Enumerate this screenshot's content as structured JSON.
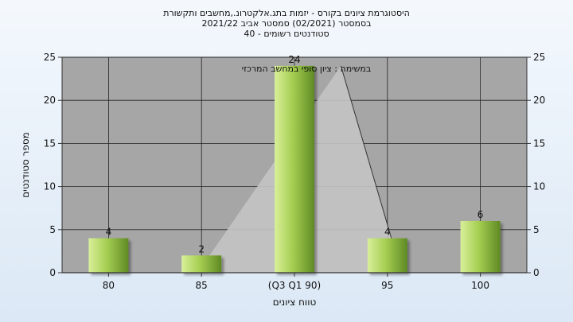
{
  "chart_data": {
    "type": "bar",
    "title_lines": [
      "היסטוגרמת ציונים בקורס - יזמות בתג.אלקטרונ.,מחשבים ותקשורת",
      "בסמסטר  (02/2021)  סמסטר אביב 2021/22",
      "סטודנטים רשומים - 40"
    ],
    "categories": [
      "80",
      "85",
      "(Q3 Q1 90)",
      "95",
      "100"
    ],
    "values": [
      4,
      2,
      24,
      4,
      6
    ],
    "data_labels": [
      "4",
      "2",
      "24",
      "4",
      "6"
    ],
    "xlabel": "טווח ציונים",
    "ylabel": "מספר סטודנטים",
    "ylim": [
      0,
      25
    ],
    "yticks": [
      0,
      5,
      10,
      15,
      20,
      25
    ],
    "annotation": "במשימה : ציון סופי במחשב המרכזי",
    "grid": true,
    "colors": {
      "plot_bg": "#a6a6a6",
      "bar_light": "#d9ef9a",
      "bar_mid": "#a6cf52",
      "bar_dark": "#5f8a24",
      "curve_fill": "#c4c4c4",
      "curve_line": "#333333"
    }
  }
}
